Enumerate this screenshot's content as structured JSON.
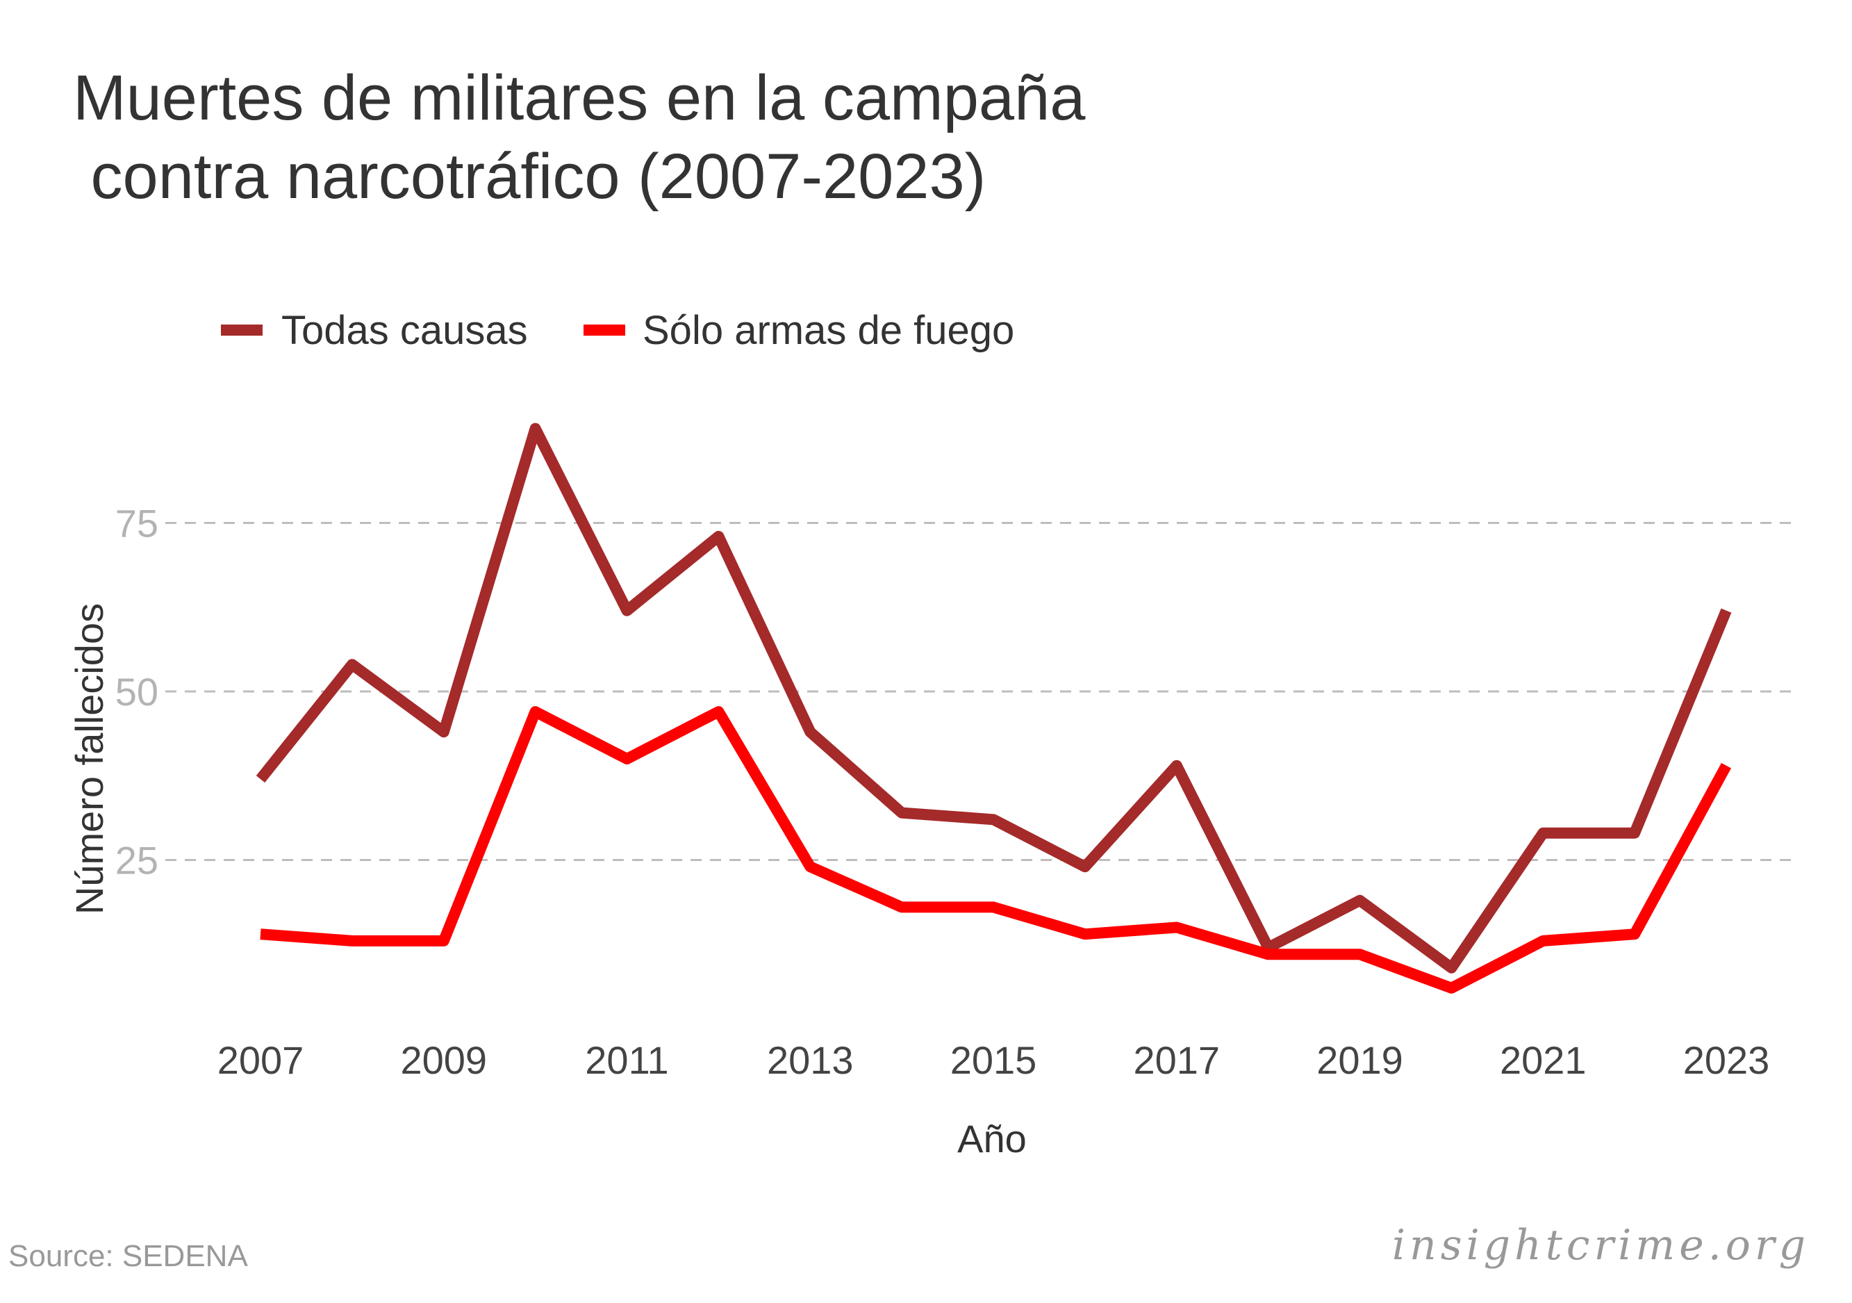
{
  "title_line1": "Muertes de militares en la campaña",
  "title_line2": " contra narcotráfico (2007-2023)",
  "source": "Source: SEDENA",
  "brand": "insightcrime.org",
  "chart_data": {
    "type": "line",
    "title": "Muertes de militares en la campaña contra narcotráfico (2007-2023)",
    "xlabel": "Año",
    "ylabel": "Número fallecidos",
    "x": [
      2007,
      2008,
      2009,
      2010,
      2011,
      2012,
      2013,
      2014,
      2015,
      2016,
      2017,
      2018,
      2019,
      2020,
      2021,
      2022,
      2023
    ],
    "x_ticks": [
      "2007",
      "2009",
      "2011",
      "2013",
      "2015",
      "2017",
      "2019",
      "2021",
      "2023"
    ],
    "y_ticks": [
      "25",
      "50",
      "75"
    ],
    "xlim": [
      2007,
      2023
    ],
    "ylim": [
      0,
      94
    ],
    "grid": "horizontal-dashed",
    "legend_position": "top",
    "series": [
      {
        "name": "Todas causas",
        "color": "#a52a2a",
        "values": [
          37,
          54,
          44,
          89,
          62,
          73,
          44,
          32,
          31,
          24,
          39,
          12,
          19,
          9,
          29,
          29,
          62
        ]
      },
      {
        "name": "Sólo armas de fuego",
        "color": "#ff0000",
        "values": [
          14,
          13,
          13,
          47,
          40,
          47,
          24,
          18,
          18,
          14,
          15,
          11,
          11,
          6,
          13,
          14,
          39
        ]
      }
    ]
  }
}
